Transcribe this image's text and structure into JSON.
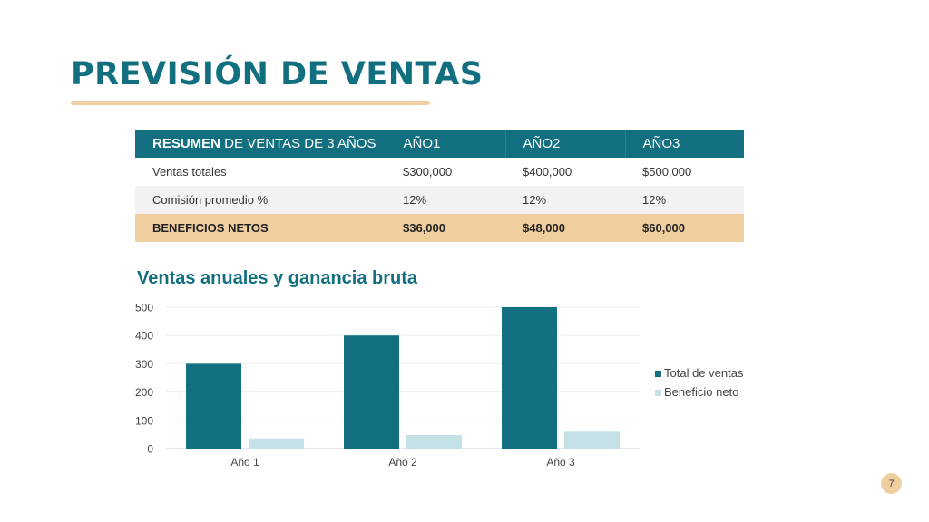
{
  "slide": {
    "title": "PREVISIÓN DE VENTAS",
    "page_number": "7"
  },
  "table": {
    "header": {
      "c1_strong": "RESUMEN",
      "c1_rest": " DE VENTAS DE 3 AÑOS",
      "c2": "AÑO1",
      "c3": "AÑO2",
      "c4": "AÑO3"
    },
    "rows": [
      {
        "label": "Ventas totales",
        "y1": "$300,000",
        "y2": "$400,000",
        "y3": "$500,000"
      },
      {
        "label": "Comisión promedio %",
        "y1": "12%",
        "y2": "12%",
        "y3": "12%"
      },
      {
        "label": "BENEFICIOS NETOS",
        "y1": "$36,000",
        "y2": "$48,000",
        "y3": "$60,000"
      }
    ]
  },
  "colors": {
    "primary": "#126f80",
    "accent": "#efcf9f",
    "light_series": "#c3e1e6",
    "row_alt": "#f2f2f2"
  },
  "chart_data": {
    "type": "bar",
    "title": "Ventas anuales y ganancia bruta",
    "categories": [
      "Año 1",
      "Año 2",
      "Año 3"
    ],
    "series": [
      {
        "name": "Total de ventas",
        "values": [
          300,
          400,
          500
        ],
        "color": "#126f80"
      },
      {
        "name": "Beneficio neto",
        "values": [
          36,
          48,
          60
        ],
        "color": "#c3e1e6"
      }
    ],
    "ylim": [
      0,
      500
    ],
    "yticks": [
      0,
      100,
      200,
      300,
      400,
      500
    ],
    "grid": true,
    "legend": "right"
  }
}
